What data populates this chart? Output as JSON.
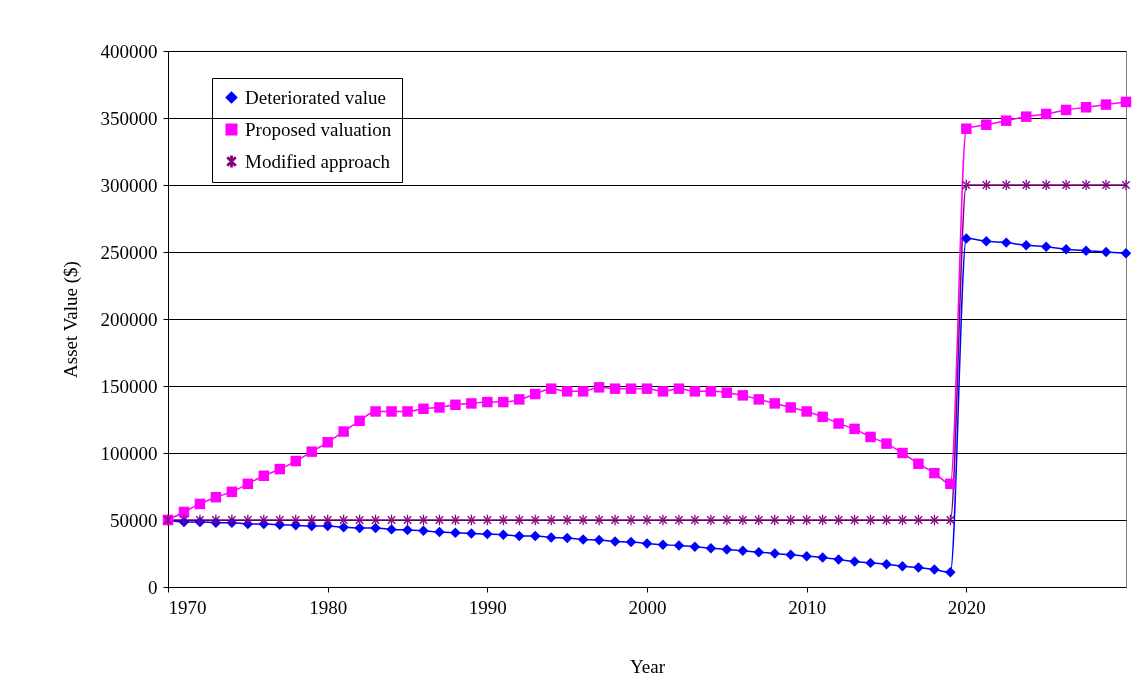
{
  "chart_data": {
    "type": "line",
    "xlabel": "Year",
    "ylabel": "Asset Value ($)",
    "x": [
      1970,
      1971,
      1972,
      1973,
      1974,
      1975,
      1976,
      1977,
      1978,
      1979,
      1980,
      1981,
      1982,
      1983,
      1984,
      1985,
      1986,
      1987,
      1988,
      1989,
      1990,
      1991,
      1992,
      1993,
      1994,
      1995,
      1996,
      1997,
      1998,
      1999,
      2000,
      2001,
      2002,
      2003,
      2004,
      2005,
      2006,
      2007,
      2008,
      2009,
      2010,
      2011,
      2012,
      2013,
      2014,
      2015,
      2016,
      2017,
      2018,
      2019,
      2020,
      2021.25,
      2022.5,
      2023.75,
      2025,
      2026.25,
      2027.5,
      2028.75,
      2030
    ],
    "series": [
      {
        "name": "Deteriorated value",
        "color": "#0000ff",
        "marker": "diamond",
        "values": [
          50000,
          48500,
          48500,
          48000,
          48000,
          47000,
          47000,
          46500,
          46000,
          45500,
          45500,
          44500,
          44000,
          44000,
          43000,
          42500,
          42000,
          41000,
          40500,
          40000,
          39500,
          39000,
          38000,
          38000,
          37000,
          36500,
          35500,
          35000,
          34000,
          33500,
          32500,
          31500,
          31000,
          30000,
          29000,
          28000,
          27000,
          26000,
          25000,
          24000,
          23000,
          22000,
          20500,
          19000,
          18000,
          17000,
          15500,
          14500,
          13000,
          11000,
          260000,
          258000,
          257000,
          255000,
          254000,
          252000,
          251000,
          250000,
          249000
        ]
      },
      {
        "name": "Proposed valuation",
        "color": "#ff00ff",
        "marker": "square",
        "values": [
          50000,
          56000,
          62000,
          67000,
          71000,
          77000,
          83000,
          88000,
          94000,
          101000,
          108000,
          116000,
          124000,
          131000,
          131000,
          131000,
          133000,
          134000,
          136000,
          137000,
          138000,
          138000,
          140000,
          144000,
          148000,
          146000,
          146000,
          149000,
          148000,
          148000,
          148000,
          146000,
          148000,
          146000,
          146000,
          145000,
          143000,
          140000,
          137000,
          134000,
          131000,
          127000,
          122000,
          118000,
          112000,
          107000,
          100000,
          92000,
          85000,
          77000,
          342000,
          345000,
          348000,
          351000,
          353000,
          356000,
          358000,
          360000,
          362000
        ]
      },
      {
        "name": "Modified approach",
        "color": "#800080",
        "marker": "cross",
        "values": [
          50000,
          50000,
          50000,
          50000,
          50000,
          50000,
          50000,
          50000,
          50000,
          50000,
          50000,
          50000,
          50000,
          50000,
          50000,
          50000,
          50000,
          50000,
          50000,
          50000,
          50000,
          50000,
          50000,
          50000,
          50000,
          50000,
          50000,
          50000,
          50000,
          50000,
          50000,
          50000,
          50000,
          50000,
          50000,
          50000,
          50000,
          50000,
          50000,
          50000,
          50000,
          50000,
          50000,
          50000,
          50000,
          50000,
          50000,
          50000,
          50000,
          50000,
          300000,
          300000,
          300000,
          300000,
          300000,
          300000,
          300000,
          300000,
          300000
        ]
      }
    ],
    "xlim": [
      1970,
      2030
    ],
    "xticks": [
      1970,
      1980,
      1990,
      2000,
      2010,
      2020
    ],
    "ylim": [
      0,
      400000
    ],
    "yticks": [
      0,
      50000,
      100000,
      150000,
      200000,
      250000,
      300000,
      350000,
      400000
    ],
    "grid": "y",
    "legend": "top left"
  }
}
